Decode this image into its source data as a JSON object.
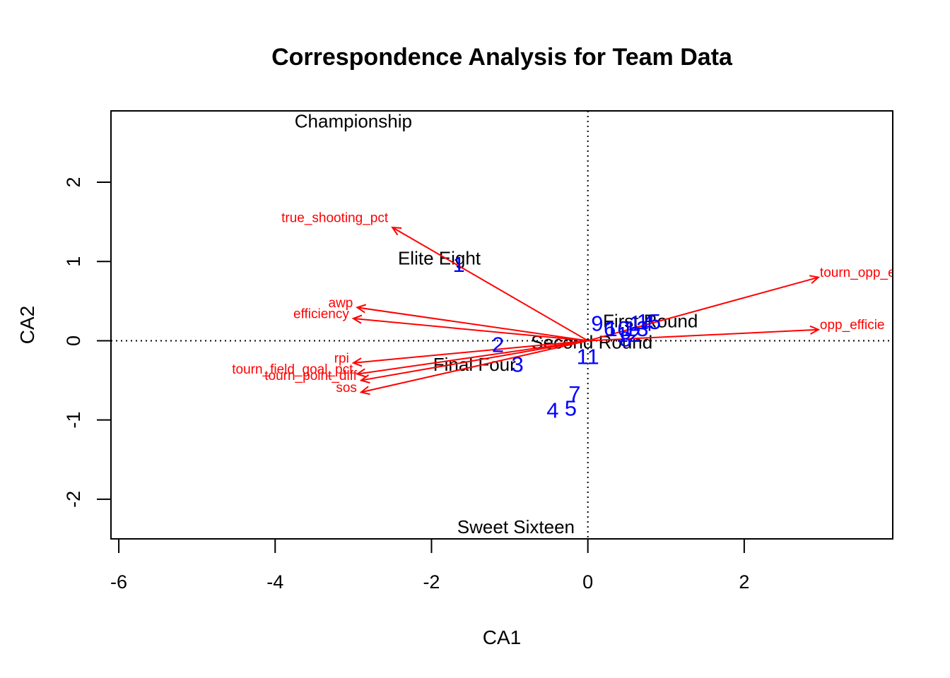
{
  "chart_data": {
    "type": "scatter",
    "title": "Correspondence Analysis for Team Data",
    "xlabel": "CA1",
    "ylabel": "CA2",
    "xlim": [
      -6.1,
      3.9
    ],
    "ylim": [
      -2.5,
      2.9
    ],
    "xticks": [
      -6,
      -4,
      -2,
      0,
      2
    ],
    "yticks": [
      -2,
      -1,
      0,
      1,
      2
    ],
    "reference_lines": {
      "x": 0,
      "y": 0,
      "style": "dotted"
    },
    "colors": {
      "rows": "#000000",
      "columns": "#0000ff",
      "arrows": "#ff0000"
    },
    "row_points": [
      {
        "label": "Championship",
        "x": -3.0,
        "y": 2.77
      },
      {
        "label": "Elite Eight",
        "x": -1.9,
        "y": 1.04
      },
      {
        "label": "First Round",
        "x": 0.8,
        "y": 0.25
      },
      {
        "label": "Second Round",
        "x": 0.05,
        "y": -0.02
      },
      {
        "label": "Final Four",
        "x": -1.45,
        "y": -0.3
      },
      {
        "label": "Sweet Sixteen",
        "x": -0.92,
        "y": -2.35
      }
    ],
    "column_points": [
      {
        "label": "1",
        "x": -1.65,
        "y": 0.96
      },
      {
        "label": "2",
        "x": -1.15,
        "y": -0.05
      },
      {
        "label": "3",
        "x": -0.9,
        "y": -0.3
      },
      {
        "label": "4",
        "x": -0.45,
        "y": -0.88
      },
      {
        "label": "5",
        "x": -0.22,
        "y": -0.85
      },
      {
        "label": "7",
        "x": -0.17,
        "y": -0.67
      },
      {
        "label": "11",
        "x": 0.0,
        "y": -0.2
      },
      {
        "label": "9",
        "x": 0.12,
        "y": 0.22
      },
      {
        "label": "6",
        "x": 0.28,
        "y": 0.15
      },
      {
        "label": "10",
        "x": 0.38,
        "y": 0.15
      },
      {
        "label": "8",
        "x": 0.48,
        "y": 0.02
      },
      {
        "label": "12",
        "x": 0.52,
        "y": 0.08
      },
      {
        "label": "13",
        "x": 0.62,
        "y": 0.15
      },
      {
        "label": "14",
        "x": 0.68,
        "y": 0.22
      },
      {
        "label": "15",
        "x": 0.78,
        "y": 0.24
      }
    ],
    "arrows": [
      {
        "label": "true_shooting_pct",
        "x": -2.5,
        "y": 1.43
      },
      {
        "label": "tourn_opp_efficie",
        "x": 2.95,
        "y": 0.8
      },
      {
        "label": "awp",
        "x": -2.95,
        "y": 0.42
      },
      {
        "label": "efficiency",
        "x": -3.0,
        "y": 0.28
      },
      {
        "label": "opp_efficie",
        "x": 2.95,
        "y": 0.14
      },
      {
        "label": "rpi",
        "x": -3.0,
        "y": -0.28
      },
      {
        "label": "tourn_field_goal_pct",
        "x": -2.95,
        "y": -0.42
      },
      {
        "label": "tourn_point_diff",
        "x": -2.9,
        "y": -0.5
      },
      {
        "label": "sos",
        "x": -2.9,
        "y": -0.65
      }
    ]
  }
}
